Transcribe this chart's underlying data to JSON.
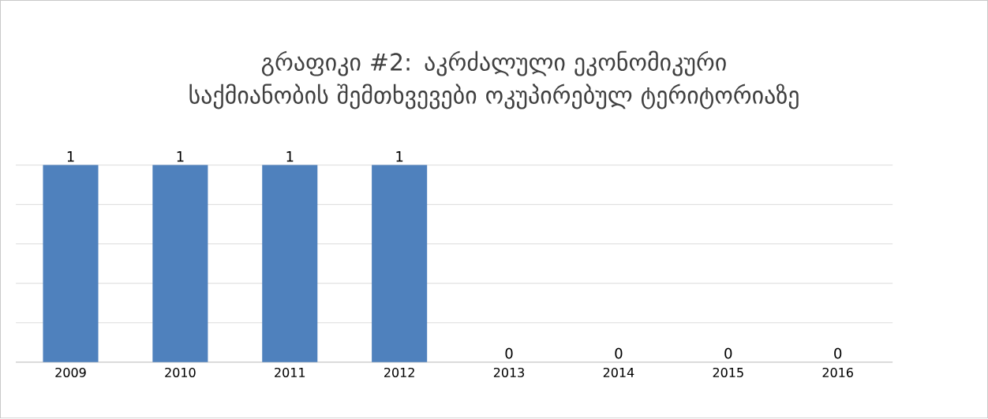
{
  "chart_data": {
    "type": "bar",
    "title": "გრაფიკი #2: აკრძალული ეკონომიკური საქმიანობის შემთხვევები ოკუპირებულ ტერიტორიაზე",
    "categories": [
      "2009",
      "2010",
      "2011",
      "2012",
      "2013",
      "2014",
      "2015",
      "2016"
    ],
    "values": [
      1,
      1,
      1,
      1,
      0,
      0,
      0,
      0
    ],
    "color": "#4f81bd",
    "ylim": [
      0,
      1
    ],
    "yticks": [
      {
        "value": 0,
        "label": null
      },
      {
        "value": 0.2,
        "label": null
      },
      {
        "value": 0.4,
        "label": null
      },
      {
        "value": 0.6,
        "label": null
      },
      {
        "value": 0.8,
        "label": null
      },
      {
        "value": 1,
        "label": null
      }
    ],
    "tick_labels": "x",
    "grid": "y",
    "data_labels": true
  }
}
